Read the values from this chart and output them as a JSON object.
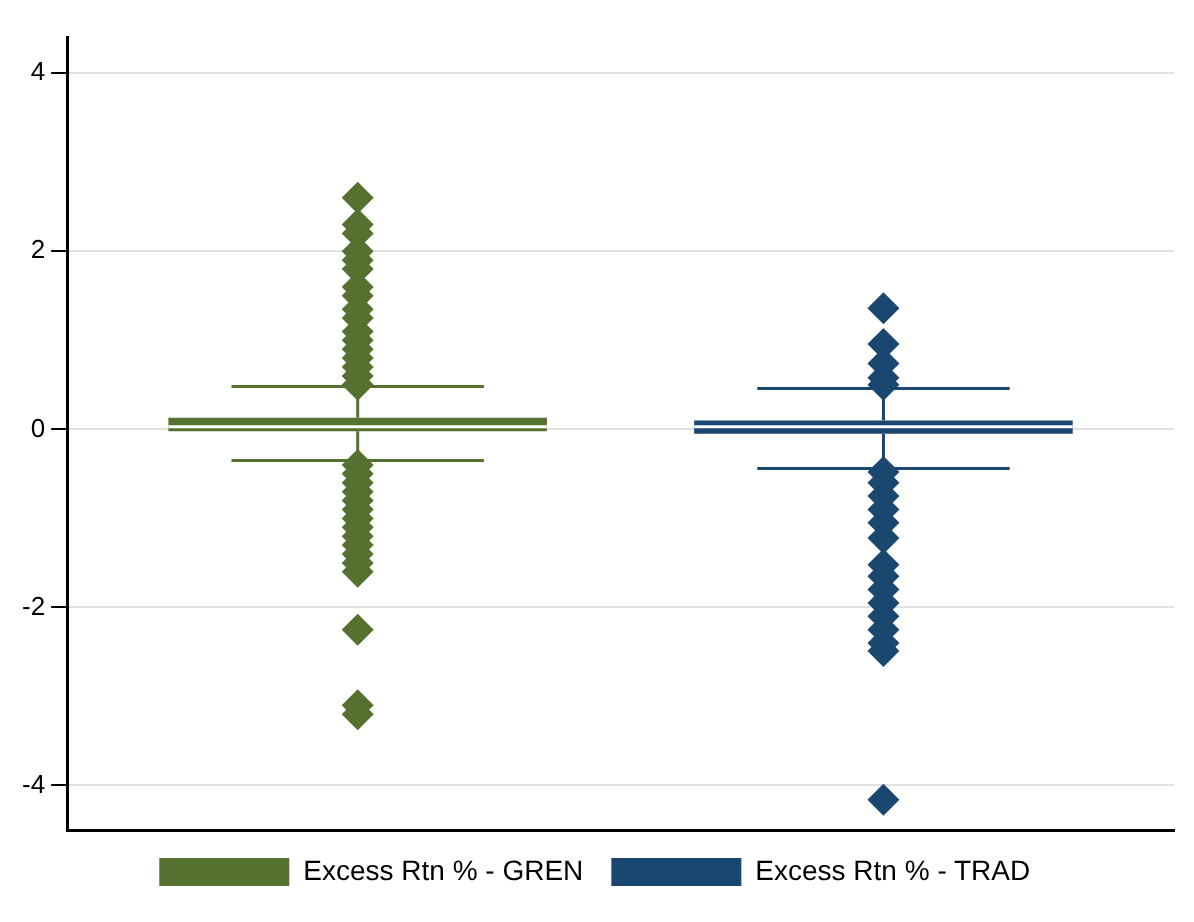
{
  "chart_data": {
    "type": "box",
    "categories": [
      null
    ],
    "series": [
      {
        "name": "Excess Rtn % - GREN",
        "color": "#557130",
        "boxes": [
          {
            "low": -0.35,
            "q1": -0.02,
            "median": 0.03,
            "q3": 0.13,
            "high": 0.48,
            "outliers": [
              2.6,
              2.3,
              2.2,
              2.0,
              1.9,
              1.8,
              1.6,
              1.5,
              1.35,
              1.25,
              1.1,
              1.0,
              0.9,
              0.8,
              0.7,
              0.6,
              0.5,
              -0.4,
              -0.5,
              -0.6,
              -0.7,
              -0.8,
              -0.9,
              -1.0,
              -1.1,
              -1.2,
              -1.3,
              -1.4,
              -1.5,
              -1.6,
              -2.25,
              -3.1,
              -3.2
            ]
          }
        ]
      },
      {
        "name": "Excess Rtn % - TRAD",
        "color": "#1a476f",
        "boxes": [
          {
            "low": -0.44,
            "q1": -0.05,
            "median": 0.03,
            "q3": 0.1,
            "high": 0.46,
            "outliers": [
              1.36,
              0.96,
              0.74,
              0.58,
              0.5,
              -0.48,
              -0.6,
              -0.75,
              -0.9,
              -1.05,
              -1.22,
              -1.52,
              -1.65,
              -1.8,
              -1.95,
              -2.1,
              -2.25,
              -2.4,
              -2.49,
              -4.16
            ]
          }
        ]
      }
    ],
    "ylim": [
      -4.5,
      4.4
    ],
    "yticks": [
      -4,
      -2,
      0,
      2,
      4
    ],
    "grid": "y",
    "legend": "bottom"
  }
}
